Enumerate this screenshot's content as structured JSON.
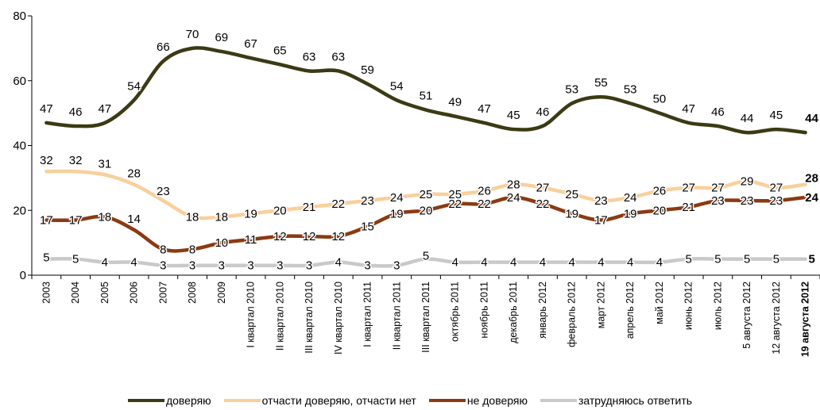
{
  "chart_data": {
    "type": "line",
    "categories": [
      "2003",
      "2004",
      "2005",
      "2006",
      "2007",
      "2008",
      "2009",
      "I квартал 2010",
      "II квартал 2010",
      "III квартал 2010",
      "IV квартал 2010",
      "I квартал 2011",
      "II квартал 2011",
      "III квартал 2011",
      "октябрь 2011",
      "ноябрь 2011",
      "декабрь 2011",
      "январь 2012",
      "февраль 2012",
      "март 2012",
      "апрель 2012",
      "май 2012",
      "июнь 2012",
      "июль 2012",
      "5 августа 2012",
      "12 августа 2012",
      "19 августа 2012"
    ],
    "yticks": [
      "0",
      "20",
      "40",
      "60",
      "80"
    ],
    "ylim": [
      0,
      80
    ],
    "grid": false,
    "legend_position": "bottom",
    "series": [
      {
        "name": "доверяю",
        "color": "#3b3a14",
        "values": [
          47,
          46,
          47,
          54,
          66,
          70,
          69,
          67,
          65,
          63,
          63,
          59,
          54,
          51,
          49,
          47,
          45,
          46,
          53,
          55,
          53,
          50,
          47,
          46,
          44,
          45,
          44
        ],
        "labels": [
          "47",
          "46",
          "47",
          "54",
          "66",
          "70",
          "69",
          "67",
          "65",
          "63",
          "63",
          "59",
          "54",
          "51",
          "49",
          "47",
          "45",
          "46",
          "53",
          "55",
          "53",
          "50",
          "47",
          "46",
          "44",
          "45",
          "44"
        ]
      },
      {
        "name": "отчасти доверяю, отчасти нет",
        "color": "#f9cf9b",
        "values": [
          32,
          32,
          31,
          28,
          23,
          18,
          18,
          19,
          20,
          21,
          22,
          23,
          24,
          25,
          25,
          26,
          28,
          27,
          25,
          23,
          24,
          26,
          27,
          27,
          29,
          27,
          28
        ],
        "labels": [
          "32",
          "32",
          "31",
          "28",
          "23",
          "18",
          "18",
          "19",
          "20",
          "21",
          "22",
          "23",
          "24",
          "25",
          "25",
          "26",
          "28",
          "27",
          "25",
          "23",
          "24",
          "26",
          "27",
          "27",
          "29",
          "27",
          "28"
        ]
      },
      {
        "name": "не доверяю",
        "color": "#8b3a12",
        "values": [
          17,
          17,
          18,
          14,
          8,
          8,
          10,
          11,
          12,
          12,
          12,
          15,
          19,
          20,
          22,
          22,
          24,
          22,
          19,
          17,
          19,
          20,
          21,
          23,
          23,
          23,
          24
        ],
        "labels": [
          "17",
          "17",
          "18",
          "14",
          "8",
          "8",
          "10",
          "11",
          "12",
          "12",
          "12",
          "15",
          "19",
          "20",
          "22",
          "22",
          "24",
          "22",
          "19",
          "17",
          "19",
          "20",
          "21",
          "23",
          "23",
          "23",
          "24"
        ]
      },
      {
        "name": "затрудняюсь ответить",
        "color": "#c9c9c9",
        "values": [
          5,
          5,
          4,
          4,
          3,
          3,
          3,
          3,
          3,
          3,
          4,
          3,
          3,
          5,
          4,
          4,
          4,
          4,
          4,
          4,
          4,
          4,
          5,
          5,
          5,
          5,
          5
        ],
        "labels": [
          "5",
          "5",
          "4",
          "4",
          "3",
          "3",
          "3",
          "3",
          "3",
          "3",
          "4",
          "3",
          "3",
          "5",
          "4",
          "4",
          "4",
          "4",
          "4",
          "4",
          "4",
          "4",
          "5",
          "5",
          "5",
          "5",
          "5"
        ]
      }
    ]
  }
}
